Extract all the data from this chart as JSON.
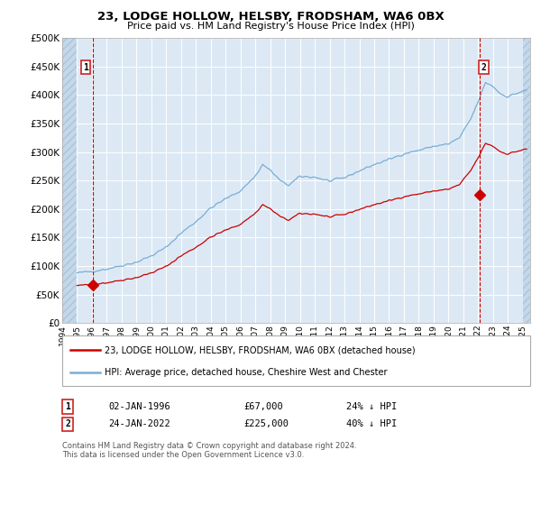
{
  "title": "23, LODGE HOLLOW, HELSBY, FRODSHAM, WA6 0BX",
  "subtitle": "Price paid vs. HM Land Registry's House Price Index (HPI)",
  "legend_line1": "23, LODGE HOLLOW, HELSBY, FRODSHAM, WA6 0BX (detached house)",
  "legend_line2": "HPI: Average price, detached house, Cheshire West and Chester",
  "transaction1_date": "02-JAN-1996",
  "transaction1_price": 67000,
  "transaction1_label": "24% ↓ HPI",
  "transaction2_date": "24-JAN-2022",
  "transaction2_price": 225000,
  "transaction2_label": "40% ↓ HPI",
  "footnote": "Contains HM Land Registry data © Crown copyright and database right 2024.\nThis data is licensed under the Open Government Licence v3.0.",
  "red_color": "#cc0000",
  "blue_color": "#7aadd4",
  "plot_bg_color": "#dce9f5",
  "ylim": [
    0,
    500000
  ],
  "yticks": [
    0,
    50000,
    100000,
    150000,
    200000,
    250000,
    300000,
    350000,
    400000,
    450000,
    500000
  ],
  "xstart": 1994.0,
  "xend": 2025.5,
  "t1_year": 1996.08,
  "t2_year": 2022.08,
  "hpi_anchors_t": [
    1995.0,
    1996.0,
    1997.0,
    1998.0,
    1999.0,
    2000.0,
    2001.0,
    2002.0,
    2003.0,
    2004.0,
    2005.0,
    2006.0,
    2007.0,
    2007.5,
    2008.0,
    2008.75,
    2009.25,
    2010.0,
    2011.0,
    2012.0,
    2013.0,
    2014.0,
    2015.0,
    2016.0,
    2017.0,
    2018.0,
    2019.0,
    2020.0,
    2020.75,
    2021.5,
    2022.0,
    2022.5,
    2023.0,
    2023.5,
    2024.0,
    2024.5,
    2025.2
  ],
  "hpi_anchors_v": [
    88000,
    91000,
    95000,
    101000,
    107000,
    118000,
    133000,
    158000,
    178000,
    202000,
    218000,
    232000,
    258000,
    278000,
    268000,
    248000,
    242000,
    257000,
    256000,
    249000,
    255000,
    267000,
    278000,
    287000,
    297000,
    303000,
    310000,
    314000,
    325000,
    358000,
    388000,
    422000,
    415000,
    402000,
    397000,
    402000,
    408000
  ],
  "price1": 67000,
  "price2": 225000
}
